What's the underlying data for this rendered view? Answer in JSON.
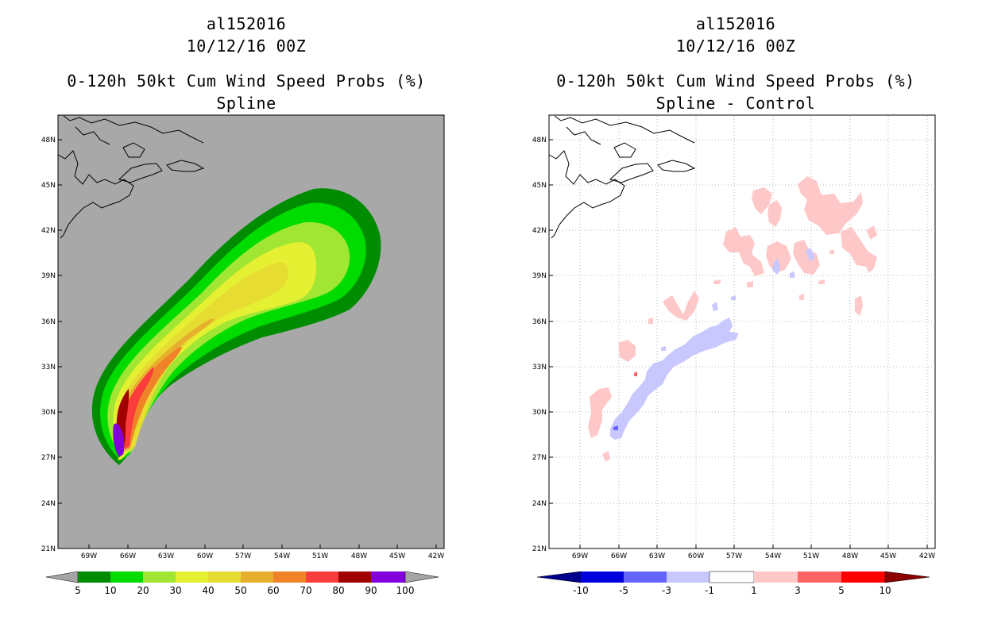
{
  "panels": [
    {
      "id": "left",
      "title_line1": "al152016",
      "title_line2": "10/12/16 00Z",
      "title_line3": "0-120h 50kt Cum Wind Speed Probs (%)",
      "title_line4": "Spline",
      "lat_labels": [
        "48N",
        "45N",
        "42N",
        "39N",
        "36N",
        "33N",
        "30N",
        "27N",
        "24N",
        "21N"
      ],
      "lon_labels": [
        "69W",
        "66W",
        "63W",
        "60W",
        "57W",
        "54W",
        "51W",
        "48W",
        "45W",
        "42W"
      ],
      "colorbar": {
        "colors": [
          "#008c00",
          "#00dc00",
          "#a0e632",
          "#e6f032",
          "#e6dc32",
          "#e6af2d",
          "#f08228",
          "#fa3c3c",
          "#a00000",
          "#8200dc"
        ],
        "labels": [
          "5",
          "10",
          "20",
          "30",
          "40",
          "50",
          "60",
          "70",
          "80",
          "90",
          "100"
        ],
        "end_color": "#a5a5a5"
      }
    },
    {
      "id": "right",
      "title_line1": "al152016",
      "title_line2": "10/12/16 00Z",
      "title_line3": "0-120h 50kt Cum Wind Speed Probs (%)",
      "title_line4": "Spline - Control",
      "lat_labels": [
        "48N",
        "45N",
        "42N",
        "39N",
        "36N",
        "33N",
        "30N",
        "27N",
        "24N",
        "21N"
      ],
      "lon_labels": [
        "69W",
        "66W",
        "63W",
        "60W",
        "57W",
        "54W",
        "51W",
        "48W",
        "45W",
        "42W"
      ],
      "colorbar": {
        "colors": [
          "#0000dc",
          "#6464ff",
          "#c8c8ff",
          "#ffffff",
          "#ffc8c8",
          "#ff6464",
          "#ff0000"
        ],
        "labels": [
          "-10",
          "-5",
          "-3",
          "-1",
          "1",
          "3",
          "5",
          "10"
        ],
        "left_end_color": "#00008c",
        "right_end_color": "#8c0000"
      }
    }
  ],
  "colors": {
    "ocean_left": "#a8a8a8",
    "ocean_right": "#ffffff",
    "coast": "#000000",
    "grid": "#a0a0a0"
  }
}
